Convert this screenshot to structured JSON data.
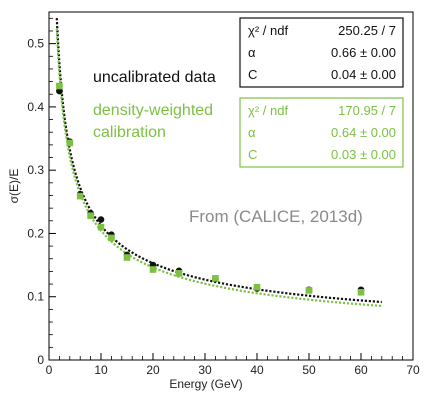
{
  "chart_data": {
    "type": "scatter",
    "xlabel": "Energy (GeV)",
    "ylabel": "σ(E)/E",
    "xlim": [
      0,
      70
    ],
    "ylim": [
      0,
      0.55
    ],
    "x_ticks": [
      "0",
      "10",
      "20",
      "30",
      "40",
      "50",
      "60",
      "70"
    ],
    "y_ticks": [
      "0",
      "0.1",
      "0.2",
      "0.3",
      "0.4",
      "0.5"
    ],
    "grid": false,
    "annotation": "From (CALICE, 2013d)",
    "series": [
      {
        "name": "uncalibrated data",
        "color": "#111111",
        "marker": "circle",
        "points": [
          {
            "x": 2,
            "y": 0.425
          },
          {
            "x": 4,
            "y": 0.345
          },
          {
            "x": 6,
            "y": 0.262
          },
          {
            "x": 8,
            "y": 0.232
          },
          {
            "x": 10,
            "y": 0.222
          },
          {
            "x": 12,
            "y": 0.198
          },
          {
            "x": 15,
            "y": 0.166
          },
          {
            "x": 20,
            "y": 0.15
          },
          {
            "x": 25,
            "y": 0.141
          },
          {
            "x": 32,
            "y": 0.128
          },
          {
            "x": 40,
            "y": 0.113
          },
          {
            "x": 50,
            "y": 0.111
          },
          {
            "x": 60,
            "y": 0.111
          }
        ],
        "fit": {
          "alpha": 0.66,
          "C": 0.04,
          "x_range": [
            1.5,
            64
          ],
          "line_style": "dotted"
        },
        "stats": [
          {
            "label": "χ² / ndf",
            "value": "250.25 / 7"
          },
          {
            "label": "α",
            "value": "0.66 ±  0.00"
          },
          {
            "label": "C",
            "value": "0.04 ±  0.00"
          }
        ]
      },
      {
        "name": "density-weighted calibration",
        "color": "#7cc142",
        "marker": "square",
        "points": [
          {
            "x": 2,
            "y": 0.433
          },
          {
            "x": 4,
            "y": 0.343
          },
          {
            "x": 6,
            "y": 0.259
          },
          {
            "x": 8,
            "y": 0.228
          },
          {
            "x": 10,
            "y": 0.21
          },
          {
            "x": 12,
            "y": 0.193
          },
          {
            "x": 15,
            "y": 0.162
          },
          {
            "x": 20,
            "y": 0.143
          },
          {
            "x": 25,
            "y": 0.137
          },
          {
            "x": 32,
            "y": 0.129
          },
          {
            "x": 40,
            "y": 0.115
          },
          {
            "x": 50,
            "y": 0.11
          },
          {
            "x": 60,
            "y": 0.107
          }
        ],
        "fit": {
          "alpha": 0.64,
          "C": 0.03,
          "x_range": [
            1.5,
            64
          ],
          "line_style": "dotted"
        },
        "stats": [
          {
            "label": "χ² / ndf",
            "value": "170.95 / 7"
          },
          {
            "label": "α",
            "value": "0.64 ±  0.00"
          },
          {
            "label": "C",
            "value": "0.03 ±  0.00"
          }
        ]
      }
    ],
    "legend": {
      "placement": "center-right",
      "entries": [
        {
          "lines": [
            "uncalibrated data"
          ],
          "color": "#111111"
        },
        {
          "lines": [
            "density-weighted",
            "calibration"
          ],
          "color": "#7cc142"
        }
      ]
    }
  }
}
